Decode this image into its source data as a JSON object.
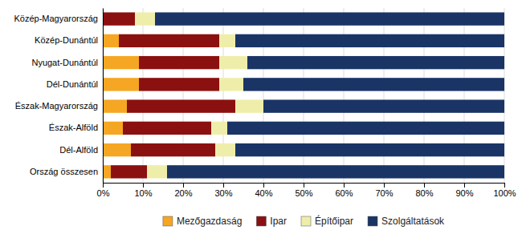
{
  "chart_data": {
    "type": "bar",
    "orientation": "horizontal",
    "stacked": true,
    "categories": [
      "Közép-Magyarország",
      "Közép-Dunántúl",
      "Nyugat-Dunántúl",
      "Dél-Dunántúl",
      "Észak-Magyarország",
      "Észak-Alföld",
      "Dél-Alföld",
      "Ország összesen"
    ],
    "series": [
      {
        "name": "Mezőgazdaság",
        "color": "#F5A623",
        "values": [
          0.0,
          4.0,
          9.0,
          9.0,
          6.0,
          5.0,
          7.0,
          2.0
        ]
      },
      {
        "name": "Ipar",
        "color": "#8B1010",
        "values": [
          8.0,
          25.0,
          20.0,
          20.0,
          27.0,
          22.0,
          21.0,
          9.0
        ]
      },
      {
        "name": "Építőipar",
        "color": "#EEEEAA",
        "values": [
          5.0,
          4.0,
          7.0,
          6.0,
          7.0,
          4.0,
          5.0,
          5.0
        ]
      },
      {
        "name": "Szolgáltatások",
        "color": "#1A3466",
        "values": [
          87.0,
          67.0,
          64.0,
          65.0,
          60.0,
          69.0,
          67.0,
          84.0
        ]
      }
    ],
    "xlim": [
      0,
      100
    ],
    "xticks": [
      {
        "value": 0,
        "label": "0%"
      },
      {
        "value": 10,
        "label": "10%"
      },
      {
        "value": 20,
        "label": "20%"
      },
      {
        "value": 30,
        "label": "30%"
      },
      {
        "value": 40,
        "label": "40%"
      },
      {
        "value": 50,
        "label": "50%"
      },
      {
        "value": 60,
        "label": "60%"
      },
      {
        "value": 70,
        "label": "70%"
      },
      {
        "value": 80,
        "label": "80%"
      },
      {
        "value": 90,
        "label": "90%"
      },
      {
        "value": 100,
        "label": "100%"
      }
    ],
    "grid": true,
    "legend": "bottom"
  }
}
